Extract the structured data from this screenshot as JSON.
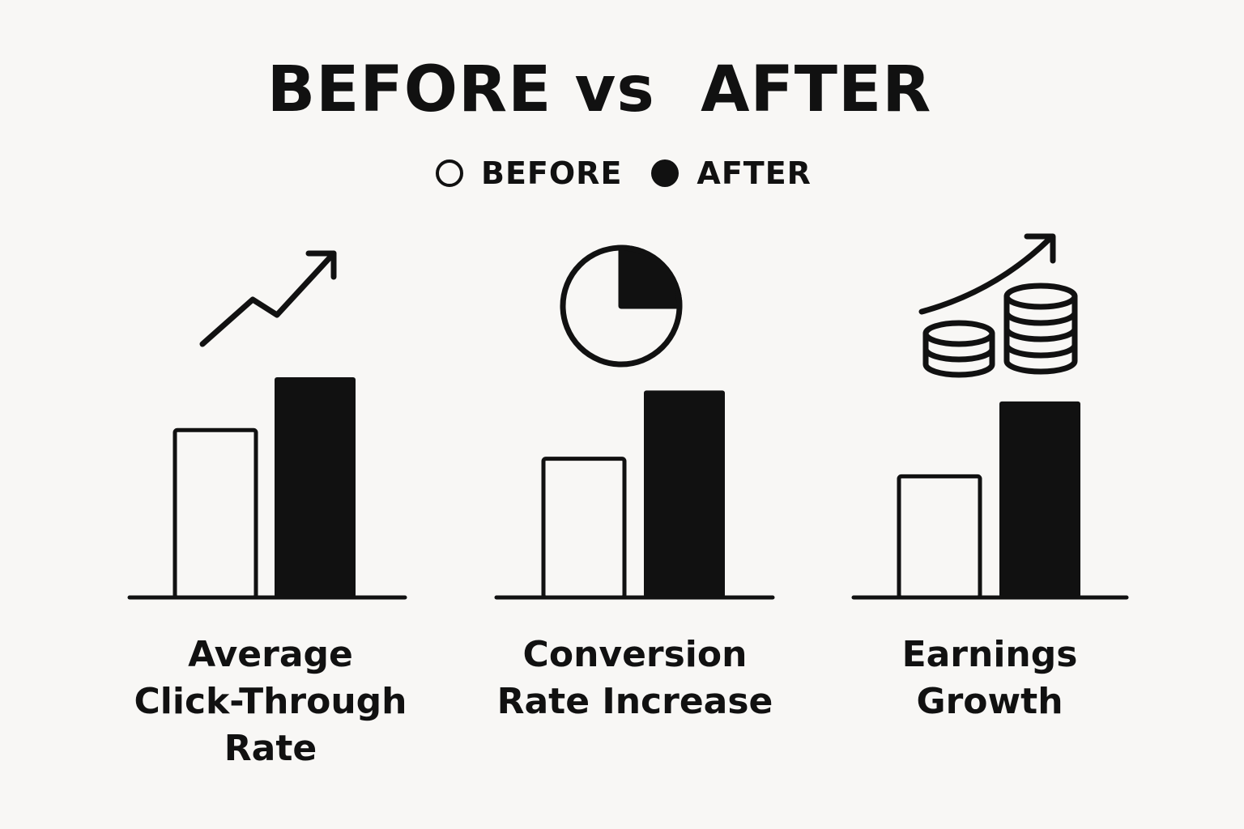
{
  "chart_data": {
    "type": "bar",
    "title": "BEFORE vs  AFTER",
    "legend": {
      "placement": "top-center",
      "items": [
        {
          "name": "BEFORE",
          "style": "outline"
        },
        {
          "name": "AFTER",
          "style": "filled"
        }
      ]
    },
    "categories": [
      {
        "lines": [
          "Average",
          "Click-Through",
          "Rate"
        ],
        "icon": "trend-arrow-icon"
      },
      {
        "lines": [
          "Conversion",
          "Rate Increase"
        ],
        "icon": "pie-icon"
      },
      {
        "lines": [
          "Earnings",
          "Growth"
        ],
        "icon": "coins-growth-icon"
      }
    ],
    "series": [
      {
        "name": "BEFORE",
        "values": [
          0.76,
          0.63,
          0.55
        ]
      },
      {
        "name": "AFTER",
        "values": [
          1.0,
          0.94,
          0.89
        ]
      }
    ],
    "value_note": "relative bar heights; no axis or values are printed",
    "ylim": [
      0,
      1
    ],
    "grid": false,
    "colors": {
      "background": "#f8f7f5",
      "ink": "#111111"
    }
  }
}
